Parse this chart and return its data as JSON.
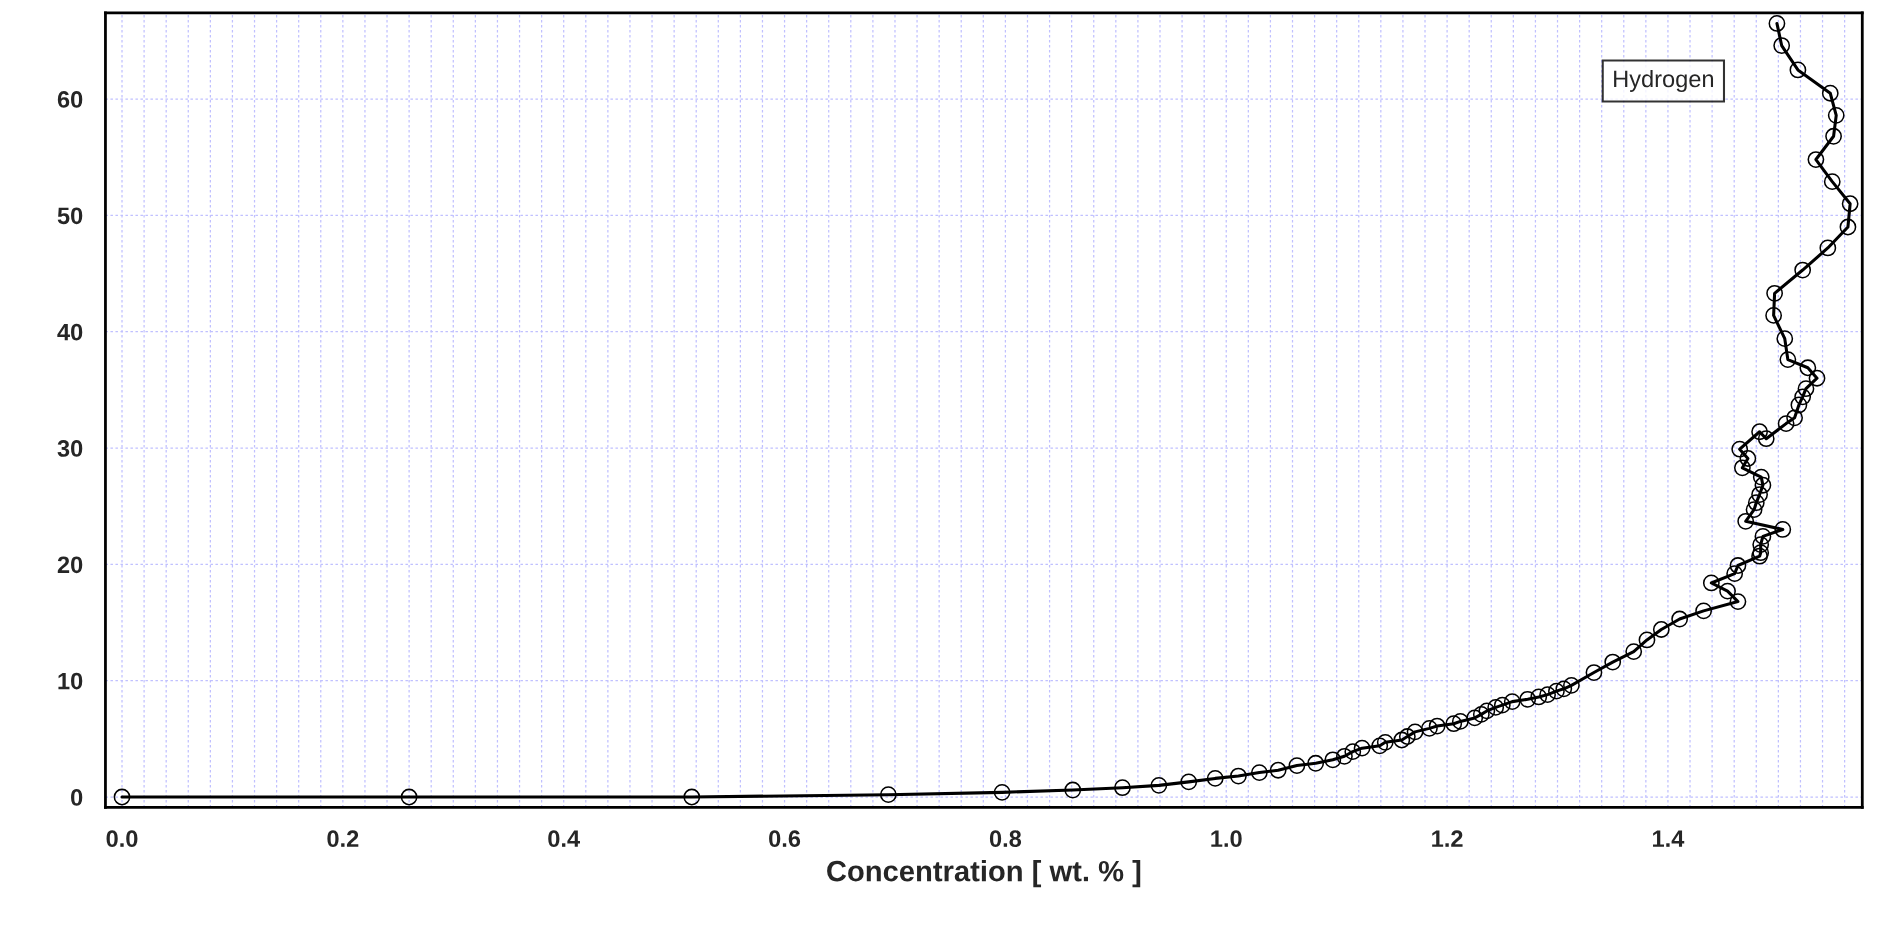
{
  "chart_data": {
    "type": "line",
    "xlabel": "Concentration [ wt. % ]",
    "xlim": [
      -0.015,
      1.576
    ],
    "ylim": [
      -0.9,
      67.4
    ],
    "xticks": [
      {
        "value": 0,
        "label": "0.0"
      },
      {
        "value": 0.02,
        "label": null
      },
      {
        "value": 0.04,
        "label": null
      },
      {
        "value": 0.06,
        "label": null
      },
      {
        "value": 0.08,
        "label": null
      },
      {
        "value": 0.1,
        "label": null
      },
      {
        "value": 0.12,
        "label": null
      },
      {
        "value": 0.14,
        "label": null
      },
      {
        "value": 0.16,
        "label": null
      },
      {
        "value": 0.18,
        "label": null
      },
      {
        "value": 0.2,
        "label": "0.2"
      },
      {
        "value": 0.22,
        "label": null
      },
      {
        "value": 0.24,
        "label": null
      },
      {
        "value": 0.26,
        "label": null
      },
      {
        "value": 0.28,
        "label": null
      },
      {
        "value": 0.3,
        "label": null
      },
      {
        "value": 0.32,
        "label": null
      },
      {
        "value": 0.34,
        "label": null
      },
      {
        "value": 0.36,
        "label": null
      },
      {
        "value": 0.38,
        "label": null
      },
      {
        "value": 0.4,
        "label": "0.4"
      },
      {
        "value": 0.42,
        "label": null
      },
      {
        "value": 0.44,
        "label": null
      },
      {
        "value": 0.46,
        "label": null
      },
      {
        "value": 0.48,
        "label": null
      },
      {
        "value": 0.5,
        "label": null
      },
      {
        "value": 0.52,
        "label": null
      },
      {
        "value": 0.54,
        "label": null
      },
      {
        "value": 0.56,
        "label": null
      },
      {
        "value": 0.58,
        "label": null
      },
      {
        "value": 0.6,
        "label": "0.6"
      },
      {
        "value": 0.62,
        "label": null
      },
      {
        "value": 0.64,
        "label": null
      },
      {
        "value": 0.66,
        "label": null
      },
      {
        "value": 0.68,
        "label": null
      },
      {
        "value": 0.7,
        "label": null
      },
      {
        "value": 0.72,
        "label": null
      },
      {
        "value": 0.74,
        "label": null
      },
      {
        "value": 0.76,
        "label": null
      },
      {
        "value": 0.78,
        "label": null
      },
      {
        "value": 0.8,
        "label": "0.8"
      },
      {
        "value": 0.82,
        "label": null
      },
      {
        "value": 0.84,
        "label": null
      },
      {
        "value": 0.86,
        "label": null
      },
      {
        "value": 0.88,
        "label": null
      },
      {
        "value": 0.9,
        "label": null
      },
      {
        "value": 0.92,
        "label": null
      },
      {
        "value": 0.94,
        "label": null
      },
      {
        "value": 0.96,
        "label": null
      },
      {
        "value": 0.98,
        "label": null
      },
      {
        "value": 1.0,
        "label": "1.0"
      },
      {
        "value": 1.02,
        "label": null
      },
      {
        "value": 1.04,
        "label": null
      },
      {
        "value": 1.06,
        "label": null
      },
      {
        "value": 1.08,
        "label": null
      },
      {
        "value": 1.1,
        "label": null
      },
      {
        "value": 1.12,
        "label": null
      },
      {
        "value": 1.14,
        "label": null
      },
      {
        "value": 1.16,
        "label": null
      },
      {
        "value": 1.18,
        "label": null
      },
      {
        "value": 1.2,
        "label": "1.2"
      },
      {
        "value": 1.22,
        "label": null
      },
      {
        "value": 1.24,
        "label": null
      },
      {
        "value": 1.26,
        "label": null
      },
      {
        "value": 1.28,
        "label": null
      },
      {
        "value": 1.3,
        "label": null
      },
      {
        "value": 1.32,
        "label": null
      },
      {
        "value": 1.34,
        "label": null
      },
      {
        "value": 1.36,
        "label": null
      },
      {
        "value": 1.38,
        "label": null
      },
      {
        "value": 1.4,
        "label": "1.4"
      },
      {
        "value": 1.42,
        "label": null
      },
      {
        "value": 1.44,
        "label": null
      },
      {
        "value": 1.46,
        "label": null
      },
      {
        "value": 1.48,
        "label": null
      },
      {
        "value": 1.5,
        "label": null
      },
      {
        "value": 1.52,
        "label": null
      },
      {
        "value": 1.54,
        "label": null
      },
      {
        "value": 1.56,
        "label": null
      }
    ],
    "yticks": [
      0,
      10,
      20,
      30,
      40,
      50,
      60
    ],
    "grid": true,
    "legend": "top right",
    "marker": "circle",
    "line_style": "solid",
    "series": [
      {
        "name": "Hydrogen",
        "color": "#000000",
        "x": [
          0.0,
          0.26,
          0.516,
          0.694,
          0.797,
          0.861,
          0.906,
          0.939,
          0.966,
          0.99,
          1.011,
          1.03,
          1.047,
          1.064,
          1.081,
          1.0965,
          1.107,
          1.1146,
          1.123,
          1.139,
          1.144,
          1.159,
          1.164,
          1.171,
          1.184,
          1.191,
          1.206,
          1.212,
          1.225,
          1.231,
          1.236,
          1.244,
          1.25,
          1.259,
          1.273,
          1.283,
          1.291,
          1.299,
          1.3057,
          1.3126,
          1.333,
          1.35,
          1.369,
          1.381,
          1.394,
          1.4106,
          1.4323,
          1.4634,
          1.454,
          1.4393,
          1.4604,
          1.4634,
          1.483,
          1.484,
          1.484,
          1.486,
          1.504,
          1.4704,
          1.478,
          1.48,
          1.483,
          1.486,
          1.4845,
          1.4674,
          1.4724,
          1.465,
          1.483,
          1.489,
          1.507,
          1.5147,
          1.5186,
          1.522,
          1.525,
          1.535,
          1.5267,
          1.5086,
          1.5058,
          1.4957,
          1.4966,
          1.522,
          1.5448,
          1.563,
          1.565,
          1.5488,
          1.534,
          1.55,
          1.5524,
          1.547,
          1.5177,
          1.503,
          1.4987
        ],
        "values": [
          0,
          0,
          0,
          0.2,
          0.4,
          0.6,
          0.8,
          1.0,
          1.3,
          1.6,
          1.8,
          2.1,
          2.3,
          2.7,
          2.9,
          3.2,
          3.5,
          3.9,
          4.2,
          4.4,
          4.7,
          4.9,
          5.2,
          5.6,
          5.9,
          6.1,
          6.3,
          6.5,
          6.8,
          7.1,
          7.4,
          7.7,
          7.9,
          8.2,
          8.4,
          8.6,
          8.8,
          9.1,
          9.3,
          9.6,
          10.7,
          11.6,
          12.5,
          13.5,
          14.4,
          15.3,
          16.0,
          16.8,
          17.7,
          18.4,
          19.2,
          19.9,
          20.7,
          21.0,
          21.7,
          22.4,
          23.0,
          23.7,
          24.7,
          25.3,
          26.0,
          26.8,
          27.5,
          28.3,
          29.1,
          29.9,
          31.4,
          30.8,
          32.1,
          32.6,
          33.7,
          34.4,
          35.1,
          36.0,
          36.9,
          37.6,
          39.4,
          41.4,
          43.3,
          45.3,
          47.2,
          49.0,
          51.0,
          52.9,
          54.8,
          56.8,
          58.6,
          60.5,
          62.5,
          64.6,
          66.5
        ]
      }
    ]
  }
}
